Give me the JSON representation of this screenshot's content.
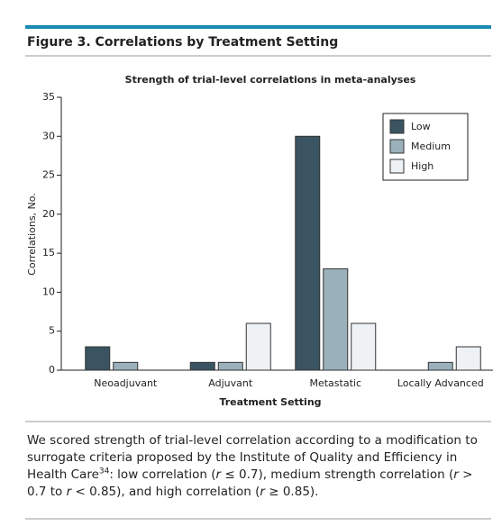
{
  "figure_title": "Figure 3. Correlations by Treatment Setting",
  "chart_data": {
    "type": "bar",
    "title": "Strength of trial-level correlations in meta-analyses",
    "x_label": "Treatment Setting",
    "y_label": "Correlations, No.",
    "categories": [
      "Neoadjuvant",
      "Adjuvant",
      "Metastatic",
      "Locally Advanced"
    ],
    "series": [
      {
        "name": "Low",
        "color": "#3a5461",
        "values": [
          3,
          1,
          30,
          0
        ]
      },
      {
        "name": "Medium",
        "color": "#9ab1bb",
        "values": [
          1,
          1,
          13,
          1
        ]
      },
      {
        "name": "High",
        "color": "#eef2f5",
        "values": [
          0,
          6,
          6,
          3
        ]
      }
    ],
    "ylim": [
      0,
      35
    ],
    "yticks": [
      0,
      5,
      10,
      15,
      20,
      25,
      30,
      35
    ],
    "legend": "upper right"
  },
  "caption": [
    "We scored strength of trial-level correlation according to a modification to surrogate criteria proposed by the Institute of Quality and Efficiency in Health Care",
    "34",
    ": low correlation (",
    "r",
    " ≤ 0.7), medium strength correlation (",
    "r",
    " > 0.7 to ",
    "r",
    " < 0.85), and high correlation (",
    "r",
    " ≥ 0.85)."
  ]
}
